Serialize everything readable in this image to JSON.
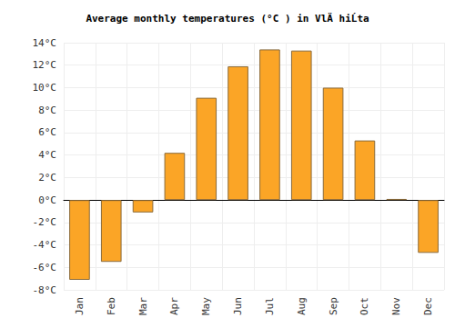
{
  "chart_data": {
    "type": "bar",
    "title": "Average monthly temperatures (°C ) in VlÄ hiĹta",
    "categories": [
      "Jan",
      "Feb",
      "Mar",
      "Apr",
      "May",
      "Jun",
      "Jul",
      "Aug",
      "Sep",
      "Oct",
      "Nov",
      "Dec"
    ],
    "values": [
      -7.1,
      -5.5,
      -1.1,
      4.2,
      9.1,
      11.9,
      13.4,
      13.3,
      10.0,
      5.3,
      0.1,
      -4.7
    ],
    "color": "#fba526",
    "ylim": [
      -8,
      14
    ],
    "yticks": [
      {
        "value": -8,
        "label": "-8°C"
      },
      {
        "value": -6,
        "label": "-6°C"
      },
      {
        "value": -4,
        "label": "-4°C"
      },
      {
        "value": -2,
        "label": "-2°C"
      },
      {
        "value": 0,
        "label": "0°C"
      },
      {
        "value": 2,
        "label": "2°C"
      },
      {
        "value": 4,
        "label": "4°C"
      },
      {
        "value": 6,
        "label": "6°C"
      },
      {
        "value": 8,
        "label": "8°C"
      },
      {
        "value": 10,
        "label": "10°C"
      },
      {
        "value": 12,
        "label": "12°C"
      },
      {
        "value": 14,
        "label": "14°C"
      }
    ],
    "grid": true
  }
}
